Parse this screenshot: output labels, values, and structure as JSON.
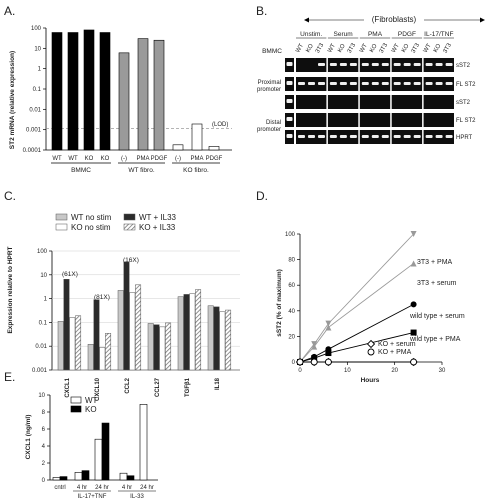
{
  "figure": {
    "panels": {
      "A": "A.",
      "B": "B.",
      "C": "C.",
      "D": "D.",
      "E": "E."
    }
  },
  "chart_data": [
    {
      "panel": "A",
      "type": "bar",
      "ylabel": "ST2 mRNA (relative expression)",
      "yscale": "log",
      "ylim": [
        0.0001,
        100
      ],
      "yticks": [
        "100",
        "10",
        "1",
        "0.1",
        "0.01",
        "0.001",
        "0.0001"
      ],
      "lod_label": "(LOD)",
      "lod_value": 0.0007,
      "categories": [
        "WT",
        "WT",
        "KO",
        "KO",
        "(-)",
        "PMA",
        "PDGF",
        "(-)",
        "PMA",
        "PDGF"
      ],
      "values": [
        60,
        60,
        80,
        60,
        6,
        30,
        25,
        0.00018,
        0.0019,
        0.00015
      ],
      "colors": [
        "#000000",
        "#000000",
        "#000000",
        "#000000",
        "#9a9a9a",
        "#9a9a9a",
        "#9a9a9a",
        "#ffffff",
        "#ffffff",
        "#ffffff"
      ],
      "groups": [
        {
          "label": "BMMC",
          "start": 0,
          "end": 3
        },
        {
          "label": "WT fibro.",
          "start": 4,
          "end": 6
        },
        {
          "label": "KO fibro.",
          "start": 7,
          "end": 9
        }
      ]
    },
    {
      "panel": "B",
      "type": "gel",
      "header": "(Fibroblasts)",
      "bmmc_label": "BMMC",
      "conditions": [
        "Unstim.",
        "Serum",
        "PMA",
        "PDGF",
        "IL-17/TNF"
      ],
      "lane_labels": [
        "WT",
        "KO",
        "3T3"
      ],
      "promoters": [
        "Proximal promoter",
        "Distal promoter"
      ],
      "row_labels": [
        "sST2",
        "FL ST2",
        "sST2",
        "FL ST2",
        "HPRT"
      ]
    },
    {
      "panel": "C",
      "type": "bar",
      "ylabel": "Expression relative to HPRT",
      "yscale": "log",
      "ylim": [
        0.001,
        100
      ],
      "yticks": [
        "100",
        "10",
        "1",
        "0.1",
        "0.01",
        "0.001"
      ],
      "legend": [
        "WT no stim",
        "KO no stim",
        "WT + IL33",
        "KO + IL33"
      ],
      "categories": [
        "CXCL1",
        "CXCL10",
        "CCL2",
        "CCL27",
        "TGFβ1",
        "IL18"
      ],
      "annotations": [
        "(61X)",
        "(81X)",
        "(16X)"
      ],
      "series": [
        {
          "name": "WT no stim",
          "values": [
            0.11,
            0.012,
            2.2,
            0.09,
            1.2,
            0.5
          ]
        },
        {
          "name": "WT + IL33",
          "values": [
            6.5,
            0.9,
            35,
            0.08,
            1.5,
            0.45
          ]
        },
        {
          "name": "KO no stim",
          "values": [
            0.16,
            0.009,
            1.8,
            0.065,
            1.6,
            0.28
          ]
        },
        {
          "name": "KO + IL33",
          "values": [
            0.19,
            0.035,
            3.8,
            0.095,
            2.4,
            0.33
          ]
        }
      ]
    },
    {
      "panel": "D",
      "type": "line",
      "xlabel": "Hours",
      "ylabel": "sST2 (% of maximum)",
      "xlim": [
        0,
        30
      ],
      "ylim": [
        0,
        100
      ],
      "xticks": [
        "0",
        "10",
        "20",
        "30"
      ],
      "yticks": [
        "0",
        "20",
        "40",
        "60",
        "80",
        "100"
      ],
      "series": [
        {
          "name": "3T3 + PMA",
          "x": [
            0,
            3,
            6,
            24
          ],
          "y": [
            0,
            14,
            30,
            100
          ],
          "color": "#999999",
          "marker": "tri-down"
        },
        {
          "name": "3T3 + serum",
          "x": [
            0,
            3,
            6,
            24
          ],
          "y": [
            0,
            12,
            27,
            77
          ],
          "color": "#999999",
          "marker": "tri-up"
        },
        {
          "name": "wild type + serum",
          "x": [
            0,
            3,
            6,
            24
          ],
          "y": [
            0,
            4,
            10,
            45
          ],
          "color": "#000000",
          "marker": "circle"
        },
        {
          "name": "wild type + PMA",
          "x": [
            0,
            3,
            6,
            24
          ],
          "y": [
            0,
            3,
            7,
            23
          ],
          "color": "#000000",
          "marker": "square"
        },
        {
          "name": "KO + serum",
          "x": [
            0,
            3,
            6,
            24
          ],
          "y": [
            0,
            0,
            0,
            0
          ],
          "color": "#000000",
          "marker": "diamond-open"
        },
        {
          "name": "KO + PMA",
          "x": [
            0,
            3,
            6,
            24
          ],
          "y": [
            0,
            0,
            0,
            0
          ],
          "color": "#000000",
          "marker": "circle-open"
        }
      ]
    },
    {
      "panel": "E",
      "type": "bar",
      "ylabel": "CXCL1 (ng/ml)",
      "ylim": [
        0,
        10
      ],
      "yticks": [
        "0",
        "2",
        "4",
        "6",
        "8",
        "10"
      ],
      "legend": [
        "WT",
        "KO"
      ],
      "categories": [
        "cntrl",
        "4 hr",
        "24 hr",
        "4 hr",
        "24 hr"
      ],
      "groups": [
        {
          "label": "IL-17+TNF",
          "start": 1,
          "end": 2
        },
        {
          "label": "IL-33",
          "start": 3,
          "end": 4
        }
      ],
      "series": [
        {
          "name": "WT",
          "values": [
            0.3,
            0.9,
            4.8,
            0.8,
            8.9
          ]
        },
        {
          "name": "KO",
          "values": [
            0.4,
            1.1,
            6.7,
            0.5,
            0
          ]
        }
      ]
    }
  ]
}
